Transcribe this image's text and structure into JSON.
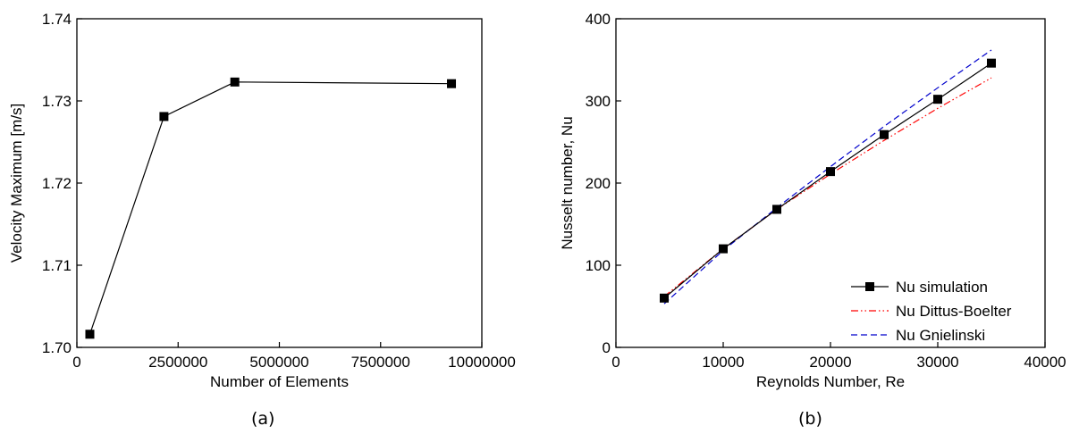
{
  "chart_data": [
    {
      "type": "line",
      "xlabel": "Number of Elements",
      "ylabel": "Velocity Maximum [m/s]",
      "xlim": [
        0,
        10000000
      ],
      "ylim": [
        1.7,
        1.74
      ],
      "xticks": [
        0,
        2500000,
        5000000,
        7500000,
        10000000
      ],
      "xtick_labels": [
        "0",
        "2500000",
        "5000000",
        "7500000",
        "10000000"
      ],
      "yticks": [
        1.7,
        1.71,
        1.72,
        1.73,
        1.74
      ],
      "ytick_labels": [
        "1.70",
        "1.71",
        "1.72",
        "1.73",
        "1.74"
      ],
      "grid": false,
      "caption": "(a)",
      "series": [
        {
          "color": "#000000",
          "marker": "square",
          "x": [
            320000,
            2150000,
            3900000,
            9250000
          ],
          "y": [
            1.7016,
            1.7281,
            1.7323,
            1.7321
          ]
        }
      ]
    },
    {
      "type": "line",
      "xlabel": "Reynolds Number, Re",
      "ylabel": "Nusselt number, Nu",
      "xlim": [
        0,
        40000
      ],
      "ylim": [
        0,
        400
      ],
      "xticks": [
        0,
        10000,
        20000,
        30000,
        40000
      ],
      "xtick_labels": [
        "0",
        "10000",
        "20000",
        "30000",
        "40000"
      ],
      "yticks": [
        0,
        100,
        200,
        300,
        400
      ],
      "ytick_labels": [
        "0",
        "100",
        "200",
        "300",
        "400"
      ],
      "grid": false,
      "legend_position": "bottom-right",
      "caption": "(b)",
      "series": [
        {
          "name": "Nu simulation",
          "color": "#000000",
          "style": "solid",
          "marker": "square",
          "x": [
            4500,
            10000,
            15000,
            20000,
            25000,
            30000,
            35000
          ],
          "y": [
            60,
            120,
            168,
            214,
            259,
            302,
            346
          ]
        },
        {
          "name": "Nu Dittus-Boelter",
          "color": "#ff0000",
          "style": "dash-dot-dot",
          "marker": "none",
          "x": [
            4500,
            10000,
            15000,
            20000,
            25000,
            30000,
            35000
          ],
          "y": [
            62,
            120,
            168,
            211,
            252,
            291,
            328
          ]
        },
        {
          "name": "Nu Gnielinski",
          "color": "#0000cc",
          "style": "dashed",
          "marker": "none",
          "x": [
            4500,
            10000,
            15000,
            20000,
            25000,
            30000,
            35000
          ],
          "y": [
            53,
            118,
            170,
            220,
            269,
            316,
            362
          ]
        }
      ]
    }
  ]
}
